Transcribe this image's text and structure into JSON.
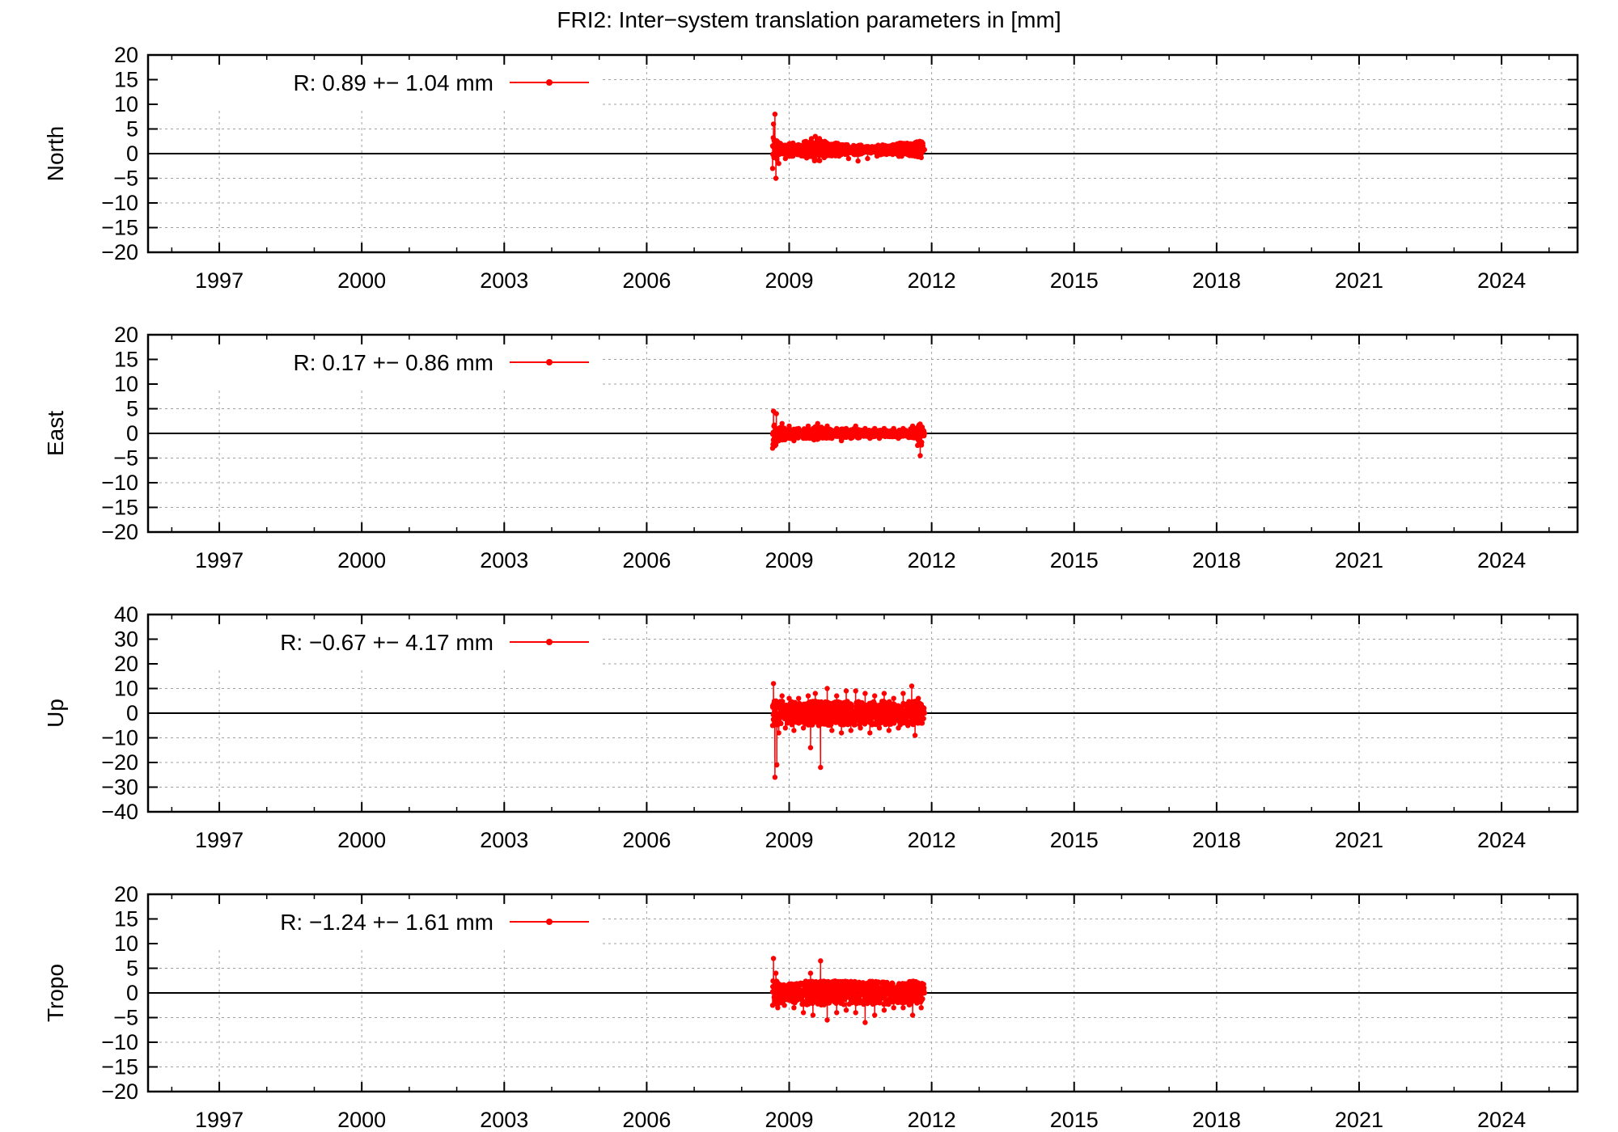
{
  "title": "FRI2: Inter−system translation parameters in [mm]",
  "series_color": "#ff0000",
  "chart_data": [
    {
      "type": "line",
      "ylabel": "North",
      "ylim": [
        -20,
        20
      ],
      "yticks": [
        20,
        15,
        10,
        5,
        0,
        -5,
        -10,
        -15,
        -20
      ],
      "xlim": [
        1995.5,
        2025.6
      ],
      "xticks": [
        1997,
        2000,
        2003,
        2006,
        2009,
        2012,
        2015,
        2018,
        2021,
        2024
      ],
      "grid": true,
      "legend": "top-left",
      "legend_label": "R:   0.89 +− 1.04 mm",
      "data_range": [
        2008.65,
        2011.85
      ],
      "series": [
        {
          "color": "#ff0000",
          "points": [
            [
              2008.65,
              -3.0
            ],
            [
              2008.67,
              6.0
            ],
            [
              2008.7,
              8.0
            ],
            [
              2008.72,
              -5.0
            ],
            [
              2008.75,
              2.5
            ],
            [
              2008.78,
              -2.0
            ],
            [
              2008.85,
              1.5
            ],
            [
              2008.92,
              -1.0
            ],
            [
              2009.0,
              2.0
            ],
            [
              2009.08,
              -0.5
            ],
            [
              2009.15,
              1.5
            ],
            [
              2009.25,
              0.5
            ],
            [
              2009.35,
              2.5
            ],
            [
              2009.45,
              -0.5
            ],
            [
              2009.55,
              3.5
            ],
            [
              2009.65,
              1.0
            ],
            [
              2009.75,
              2.5
            ],
            [
              2009.85,
              0.5
            ],
            [
              2009.95,
              2.0
            ],
            [
              2010.05,
              -0.5
            ],
            [
              2010.15,
              1.5
            ],
            [
              2010.25,
              -1.0
            ],
            [
              2010.35,
              1.0
            ],
            [
              2010.45,
              -1.5
            ],
            [
              2010.55,
              0.5
            ],
            [
              2010.65,
              -1.0
            ],
            [
              2010.75,
              1.0
            ],
            [
              2010.85,
              -0.5
            ],
            [
              2010.95,
              1.5
            ],
            [
              2011.05,
              0.0
            ],
            [
              2011.15,
              1.5
            ],
            [
              2011.25,
              0.0
            ],
            [
              2011.35,
              2.0
            ],
            [
              2011.45,
              0.5
            ],
            [
              2011.55,
              2.0
            ],
            [
              2011.65,
              -0.5
            ],
            [
              2011.75,
              2.5
            ],
            [
              2011.82,
              0.5
            ]
          ]
        }
      ]
    },
    {
      "type": "line",
      "ylabel": "East",
      "ylim": [
        -20,
        20
      ],
      "yticks": [
        20,
        15,
        10,
        5,
        0,
        -5,
        -10,
        -15,
        -20
      ],
      "xlim": [
        1995.5,
        2025.6
      ],
      "xticks": [
        1997,
        2000,
        2003,
        2006,
        2009,
        2012,
        2015,
        2018,
        2021,
        2024
      ],
      "grid": true,
      "legend": "top-left",
      "legend_label": "R:   0.17 +− 0.86 mm",
      "data_range": [
        2008.65,
        2011.85
      ],
      "series": [
        {
          "color": "#ff0000",
          "points": [
            [
              2008.65,
              -3.0
            ],
            [
              2008.67,
              4.5
            ],
            [
              2008.7,
              -2.5
            ],
            [
              2008.73,
              4.0
            ],
            [
              2008.78,
              -1.5
            ],
            [
              2008.85,
              2.0
            ],
            [
              2008.92,
              -1.0
            ],
            [
              2009.0,
              1.5
            ],
            [
              2009.1,
              -1.5
            ],
            [
              2009.2,
              1.0
            ],
            [
              2009.3,
              -1.0
            ],
            [
              2009.4,
              1.5
            ],
            [
              2009.5,
              -0.5
            ],
            [
              2009.6,
              2.0
            ],
            [
              2009.7,
              -0.5
            ],
            [
              2009.8,
              1.5
            ],
            [
              2009.9,
              -1.0
            ],
            [
              2010.0,
              1.0
            ],
            [
              2010.1,
              -1.5
            ],
            [
              2010.2,
              1.0
            ],
            [
              2010.3,
              -1.0
            ],
            [
              2010.4,
              1.5
            ],
            [
              2010.5,
              -0.5
            ],
            [
              2010.6,
              1.0
            ],
            [
              2010.7,
              -1.0
            ],
            [
              2010.8,
              1.0
            ],
            [
              2010.9,
              -1.0
            ],
            [
              2011.0,
              1.0
            ],
            [
              2011.1,
              -0.5
            ],
            [
              2011.2,
              1.0
            ],
            [
              2011.3,
              -1.0
            ],
            [
              2011.4,
              1.0
            ],
            [
              2011.5,
              -0.5
            ],
            [
              2011.6,
              1.5
            ],
            [
              2011.7,
              -1.0
            ],
            [
              2011.76,
              -4.5
            ],
            [
              2011.8,
              1.0
            ],
            [
              2011.84,
              -0.5
            ]
          ]
        }
      ]
    },
    {
      "type": "line",
      "ylabel": "Up",
      "ylim": [
        -40,
        40
      ],
      "yticks": [
        40,
        30,
        20,
        10,
        0,
        -10,
        -20,
        -30,
        -40
      ],
      "xlim": [
        1995.5,
        2025.6
      ],
      "xticks": [
        1997,
        2000,
        2003,
        2006,
        2009,
        2012,
        2015,
        2018,
        2021,
        2024
      ],
      "grid": true,
      "legend": "top-left",
      "legend_label": "R:  −0.67 +− 4.17 mm",
      "data_range": [
        2008.65,
        2011.85
      ],
      "series": [
        {
          "color": "#ff0000",
          "points": [
            [
              2008.65,
              -5.0
            ],
            [
              2008.67,
              12.0
            ],
            [
              2008.7,
              -26.0
            ],
            [
              2008.72,
              5.0
            ],
            [
              2008.74,
              -21.0
            ],
            [
              2008.78,
              -8.0
            ],
            [
              2008.85,
              7.0
            ],
            [
              2008.92,
              -6.0
            ],
            [
              2009.0,
              6.0
            ],
            [
              2009.1,
              -7.0
            ],
            [
              2009.2,
              6.0
            ],
            [
              2009.3,
              -6.0
            ],
            [
              2009.4,
              7.0
            ],
            [
              2009.45,
              -14.0
            ],
            [
              2009.55,
              8.0
            ],
            [
              2009.62,
              -5.0
            ],
            [
              2009.66,
              -22.0
            ],
            [
              2009.7,
              -4.0
            ],
            [
              2009.8,
              10.0
            ],
            [
              2009.9,
              -7.0
            ],
            [
              2010.0,
              7.0
            ],
            [
              2010.1,
              -8.0
            ],
            [
              2010.2,
              9.0
            ],
            [
              2010.3,
              -7.0
            ],
            [
              2010.4,
              9.0
            ],
            [
              2010.5,
              -6.0
            ],
            [
              2010.6,
              8.0
            ],
            [
              2010.7,
              -8.0
            ],
            [
              2010.8,
              7.0
            ],
            [
              2010.9,
              -6.0
            ],
            [
              2011.0,
              8.0
            ],
            [
              2011.1,
              -7.0
            ],
            [
              2011.2,
              6.0
            ],
            [
              2011.3,
              -6.0
            ],
            [
              2011.4,
              8.0
            ],
            [
              2011.5,
              -5.0
            ],
            [
              2011.58,
              11.0
            ],
            [
              2011.65,
              -9.0
            ],
            [
              2011.72,
              6.0
            ],
            [
              2011.8,
              -4.0
            ],
            [
              2011.84,
              2.0
            ]
          ]
        }
      ]
    },
    {
      "type": "line",
      "ylabel": "Tropo",
      "ylim": [
        -20,
        20
      ],
      "yticks": [
        20,
        15,
        10,
        5,
        0,
        -5,
        -10,
        -15,
        -20
      ],
      "xlim": [
        1995.5,
        2025.6
      ],
      "xticks": [
        1997,
        2000,
        2003,
        2006,
        2009,
        2012,
        2015,
        2018,
        2021,
        2024
      ],
      "grid": true,
      "legend": "top-left",
      "legend_label": "R:  −1.24 +− 1.61 mm",
      "data_range": [
        2008.65,
        2011.85
      ],
      "series": [
        {
          "color": "#ff0000",
          "points": [
            [
              2008.65,
              -2.5
            ],
            [
              2008.67,
              7.0
            ],
            [
              2008.7,
              -1.0
            ],
            [
              2008.72,
              4.0
            ],
            [
              2008.76,
              -3.0
            ],
            [
              2008.82,
              1.5
            ],
            [
              2008.9,
              -2.5
            ],
            [
              2009.0,
              1.0
            ],
            [
              2009.1,
              -3.0
            ],
            [
              2009.2,
              0.5
            ],
            [
              2009.3,
              -4.0
            ],
            [
              2009.4,
              1.5
            ],
            [
              2009.45,
              4.0
            ],
            [
              2009.5,
              -4.5
            ],
            [
              2009.6,
              0.5
            ],
            [
              2009.66,
              6.5
            ],
            [
              2009.7,
              -2.0
            ],
            [
              2009.8,
              -5.5
            ],
            [
              2009.9,
              1.0
            ],
            [
              2010.0,
              -4.0
            ],
            [
              2010.1,
              0.5
            ],
            [
              2010.2,
              -3.5
            ],
            [
              2010.3,
              1.0
            ],
            [
              2010.4,
              -4.0
            ],
            [
              2010.5,
              0.5
            ],
            [
              2010.6,
              -6.0
            ],
            [
              2010.7,
              -1.0
            ],
            [
              2010.8,
              -4.5
            ],
            [
              2010.9,
              0.5
            ],
            [
              2011.0,
              -3.5
            ],
            [
              2011.1,
              1.0
            ],
            [
              2011.2,
              -3.0
            ],
            [
              2011.3,
              1.5
            ],
            [
              2011.4,
              -3.0
            ],
            [
              2011.5,
              1.5
            ],
            [
              2011.6,
              -4.5
            ],
            [
              2011.7,
              2.0
            ],
            [
              2011.78,
              -3.0
            ],
            [
              2011.84,
              1.0
            ]
          ]
        }
      ]
    }
  ]
}
